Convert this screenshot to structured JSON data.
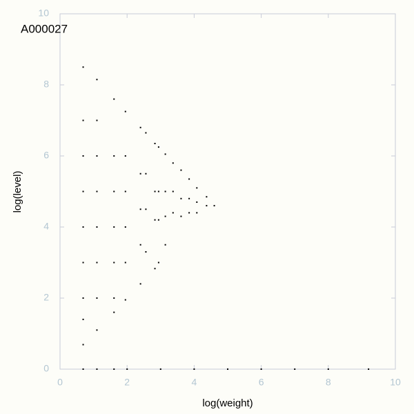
{
  "chart_data": {
    "type": "scatter",
    "title": "A000027",
    "x_label": "log(weight)",
    "y_label": "log(level)",
    "xlim": [
      0,
      10
    ],
    "ylim": [
      0,
      10
    ],
    "xticks": [
      0,
      2,
      4,
      6,
      8,
      10
    ],
    "yticks": [
      0,
      2,
      4,
      6,
      8,
      10
    ],
    "color": "#000000",
    "x": [
      0.69,
      0.69,
      0.69,
      0.69,
      0.69,
      0.69,
      0.69,
      0.69,
      0.69,
      1.1,
      1.1,
      1.1,
      1.1,
      1.1,
      1.1,
      1.1,
      1.1,
      1.61,
      1.61,
      1.61,
      1.61,
      1.61,
      1.61,
      1.61,
      1.95,
      1.95,
      1.95,
      1.95,
      1.95,
      1.95,
      2.4,
      2.4,
      2.4,
      2.4,
      2.4,
      2.56,
      2.56,
      2.56,
      2.56,
      2.83,
      2.83,
      2.83,
      2.83,
      2.94,
      2.94,
      2.94,
      2.94,
      3.14,
      3.14,
      3.14,
      3.14,
      3.37,
      3.37,
      3.37,
      3.61,
      3.61,
      3.61,
      3.85,
      3.85,
      3.85,
      4.08,
      4.08,
      4.08,
      4.37,
      4.37,
      4.6,
      0.69,
      1.1,
      1.61,
      2,
      3,
      4,
      5,
      6,
      7,
      8,
      9.2
    ],
    "y": [
      8.5,
      7,
      6,
      5,
      4,
      3,
      2,
      1.4,
      0.69,
      8.15,
      7,
      6,
      5,
      4,
      3,
      2,
      1.1,
      7.6,
      6,
      5,
      4,
      3,
      2,
      1.6,
      7.25,
      6,
      5,
      4,
      3,
      1.95,
      6.8,
      5.5,
      4.5,
      3.5,
      2.4,
      6.65,
      5.5,
      4.5,
      3.3,
      6.35,
      5,
      4.2,
      2.83,
      6.25,
      5,
      4.2,
      3,
      6.05,
      5,
      4.3,
      3.5,
      5.8,
      5,
      4.4,
      5.6,
      4.8,
      4.3,
      5.35,
      4.8,
      4.4,
      5.1,
      4.7,
      4.4,
      4.85,
      4.6,
      4.6,
      0,
      0,
      0,
      0,
      0,
      0,
      0,
      0,
      0,
      0,
      0
    ]
  }
}
